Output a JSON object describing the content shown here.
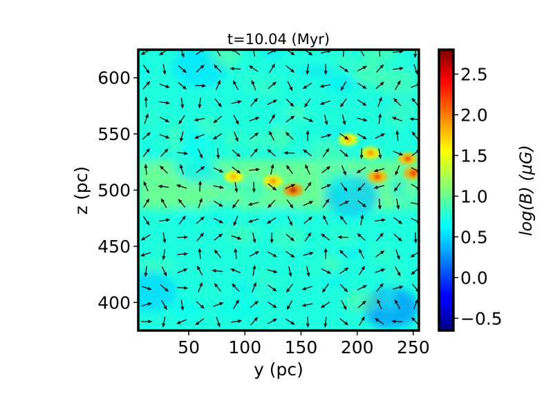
{
  "chart_data": {
    "type": "heatmap",
    "title": "t=10.04 (Myr)",
    "xlabel": "y (pc)",
    "ylabel": "z (pc)",
    "xlim": [
      5,
      255
    ],
    "ylim": [
      375,
      625
    ],
    "xticks": [
      50,
      100,
      150,
      200,
      250
    ],
    "yticks": [
      400,
      450,
      500,
      550,
      600
    ],
    "colorbar": {
      "label": "log(B) (μG)",
      "range": [
        -0.65,
        2.8
      ],
      "ticks": [
        -0.5,
        0.0,
        0.5,
        1.0,
        1.5,
        2.0,
        2.5
      ],
      "tick_labels": [
        "−0.5",
        "0.0",
        "0.5",
        "1.0",
        "1.5",
        "2.0",
        "2.5"
      ],
      "colormap": "jet"
    },
    "field_description": {
      "background_level": 0.75,
      "midplane_z": 505,
      "midplane_level": 1.2,
      "hotspots": [
        {
          "y": 143,
          "z": 500,
          "level": 2.6
        },
        {
          "y": 125,
          "z": 508,
          "level": 1.9
        },
        {
          "y": 218,
          "z": 512,
          "level": 2.3
        },
        {
          "y": 245,
          "z": 528,
          "level": 2.2
        },
        {
          "y": 250,
          "z": 515,
          "level": 2.4
        },
        {
          "y": 192,
          "z": 545,
          "level": 1.8
        },
        {
          "y": 212,
          "z": 533,
          "level": 1.9
        },
        {
          "y": 90,
          "z": 512,
          "level": 1.8
        }
      ],
      "low_regions": [
        {
          "y": 230,
          "z": 395,
          "level": 0.25
        },
        {
          "y": 15,
          "z": 410,
          "level": 0.5
        },
        {
          "y": 195,
          "z": 495,
          "level": 0.45
        },
        {
          "y": 60,
          "z": 610,
          "level": 0.55
        }
      ]
    },
    "vector_field": {
      "description": "magnetic field direction arrows on a regular grid",
      "y_step": 16,
      "z_step": 15
    }
  }
}
